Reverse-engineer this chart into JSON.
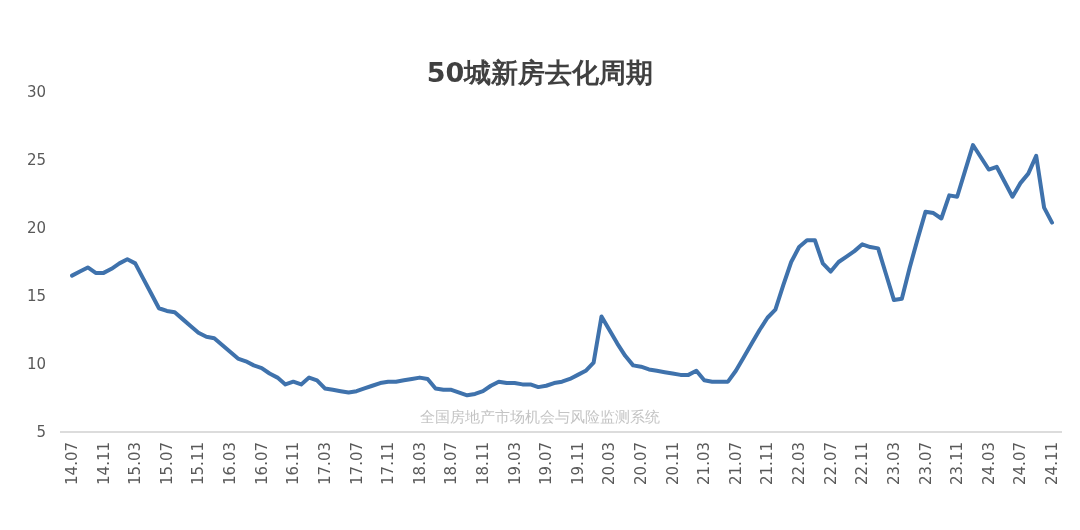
{
  "chart_data": {
    "type": "line",
    "title": "50城新房去化周期",
    "color": "#3f72ac",
    "categories": [
      "14.07",
      null,
      null,
      null,
      "14.11",
      null,
      null,
      null,
      "15.03",
      null,
      null,
      null,
      "15.07",
      null,
      null,
      null,
      "15.11",
      null,
      null,
      null,
      "16.03",
      null,
      null,
      null,
      "16.07",
      null,
      null,
      null,
      "16.11",
      null,
      null,
      null,
      "17.03",
      null,
      null,
      null,
      "17.07",
      null,
      null,
      null,
      "17.11",
      null,
      null,
      null,
      "18.03",
      null,
      null,
      null,
      "18.07",
      null,
      null,
      null,
      "18.11",
      null,
      null,
      null,
      "19.03",
      null,
      null,
      null,
      "19.07",
      null,
      null,
      null,
      "19.11",
      null,
      null,
      null,
      "20.03",
      null,
      null,
      null,
      "20.07",
      null,
      null,
      null,
      "20.11",
      null,
      null,
      null,
      "21.03",
      null,
      null,
      null,
      "21.07",
      null,
      null,
      null,
      "21.11",
      null,
      null,
      null,
      "22.03",
      null,
      null,
      null,
      "22.07",
      null,
      null,
      null,
      "22.11",
      null,
      null,
      null,
      "23.03",
      null,
      null,
      null,
      "23.07",
      null,
      null,
      null,
      "23.11",
      null,
      null,
      null,
      "24.03",
      null,
      null,
      null,
      "24.07",
      null,
      null,
      null,
      "24.11"
    ],
    "values": [
      16.5,
      16.8,
      17.1,
      16.7,
      16.7,
      17.0,
      17.4,
      17.7,
      17.4,
      16.3,
      15.2,
      14.1,
      13.9,
      13.8,
      13.3,
      12.8,
      12.3,
      12.0,
      11.9,
      11.4,
      10.9,
      10.4,
      10.2,
      9.9,
      9.7,
      9.3,
      9.0,
      8.5,
      8.7,
      8.5,
      9.0,
      8.8,
      8.2,
      8.1,
      8.0,
      7.9,
      8.0,
      8.2,
      8.4,
      8.6,
      8.7,
      8.7,
      8.8,
      8.9,
      9.0,
      8.9,
      8.2,
      8.1,
      8.1,
      7.9,
      7.7,
      7.8,
      8.0,
      8.4,
      8.7,
      8.6,
      8.6,
      8.5,
      8.5,
      8.3,
      8.4,
      8.6,
      8.7,
      8.9,
      9.2,
      9.5,
      10.1,
      13.5,
      12.5,
      11.5,
      10.6,
      9.9,
      9.8,
      9.6,
      9.5,
      9.4,
      9.3,
      9.2,
      9.2,
      9.5,
      8.8,
      8.7,
      8.7,
      8.7,
      9.5,
      10.5,
      11.5,
      12.5,
      13.4,
      14.0,
      15.8,
      17.5,
      18.6,
      19.1,
      19.1,
      17.4,
      16.8,
      17.5,
      17.9,
      18.3,
      18.8,
      18.6,
      18.5,
      16.6,
      14.7,
      14.8,
      17.1,
      19.2,
      21.2,
      21.1,
      20.7,
      22.4,
      22.3,
      24.2,
      26.1,
      25.2,
      24.3,
      24.5,
      23.4,
      22.3,
      23.3,
      24.0,
      25.3,
      21.5,
      20.4
    ],
    "ylim": [
      5,
      30
    ],
    "yticks": [
      5,
      10,
      15,
      20,
      25,
      30
    ],
    "annotations": [
      "全国房地产市场机会与风险监测系统"
    ]
  }
}
